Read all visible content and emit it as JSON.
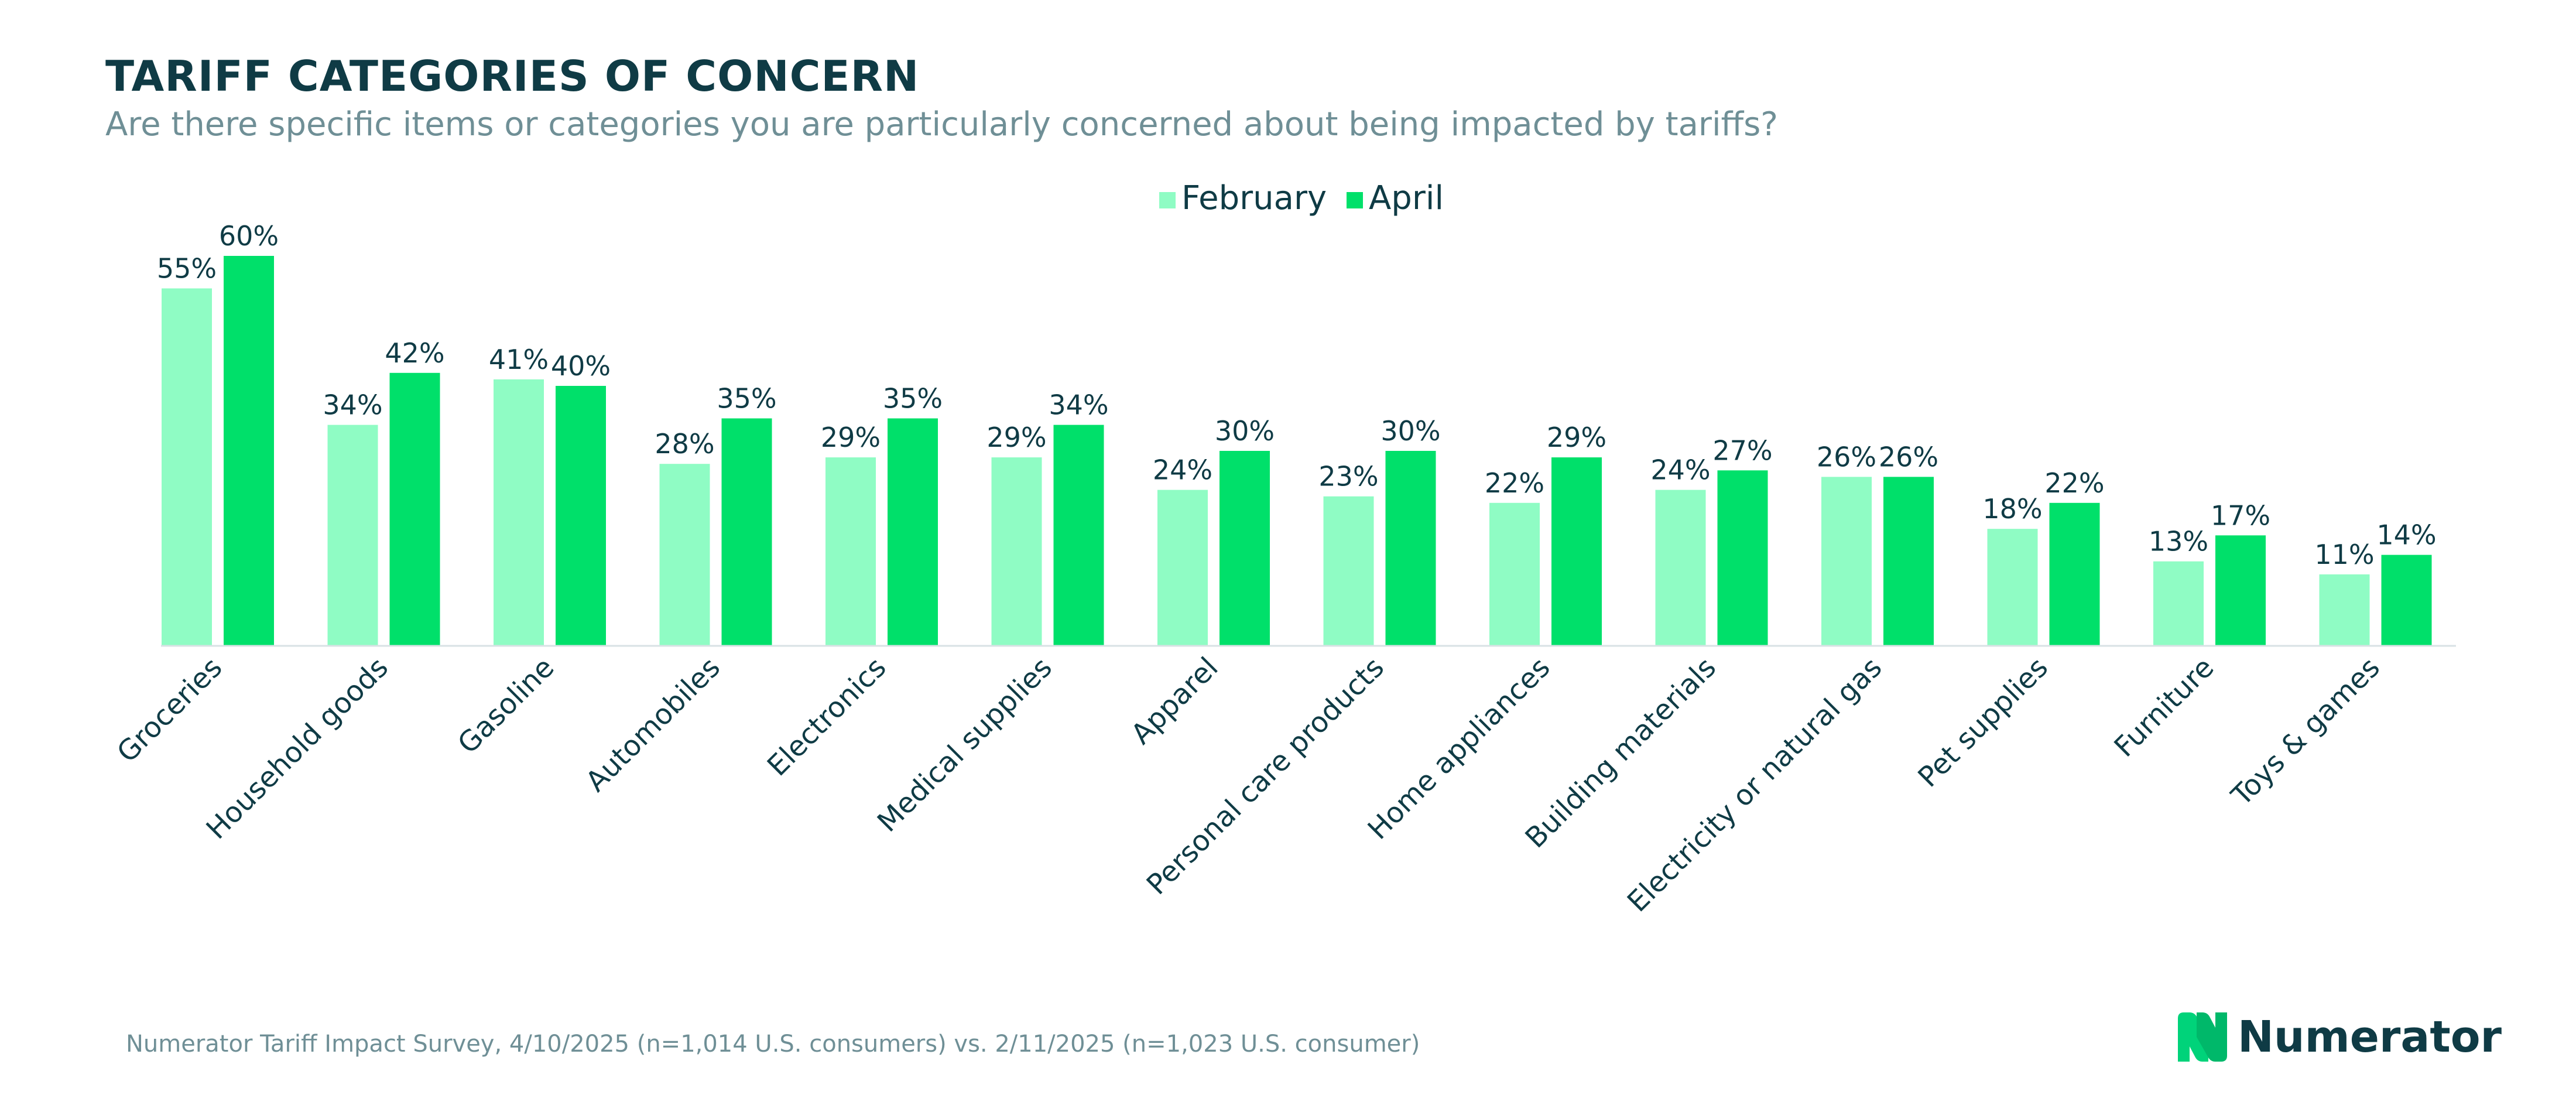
{
  "title": "TARIFF CATEGORIES OF CONCERN",
  "subtitle": "Are there specific items or categories you are particularly concerned about being impacted by tariffs?",
  "source": "Numerator Tariff Impact Survey, 4/10/2025 (n=1,014 U.S. consumers) vs. 2/11/2025 (n=1,023 U.S. consumer)",
  "logo": {
    "text": "Numerator",
    "icon": "numerator-n-logo-icon"
  },
  "colors": {
    "february": "#8ffcc4",
    "april": "#00e06a",
    "text": "#0f3b45",
    "muted": "#6f8f96"
  },
  "chart_data": {
    "type": "bar",
    "title": "TARIFF CATEGORIES OF CONCERN",
    "categories": [
      "Groceries",
      "Household goods",
      "Gasoline",
      "Automobiles",
      "Electronics",
      "Medical supplies",
      "Apparel",
      "Personal care products",
      "Home appliances",
      "Building materials",
      "Electricity or natural gas",
      "Pet supplies",
      "Furniture",
      "Toys & games"
    ],
    "series": [
      {
        "name": "February",
        "values": [
          55,
          34,
          41,
          28,
          29,
          29,
          24,
          23,
          22,
          24,
          26,
          18,
          13,
          11
        ]
      },
      {
        "name": "April",
        "values": [
          60,
          42,
          40,
          35,
          35,
          34,
          30,
          30,
          29,
          27,
          26,
          22,
          17,
          14
        ]
      }
    ],
    "value_suffix": "%",
    "ylim": [
      0,
      60
    ],
    "grid": false,
    "legend_position": "top-center",
    "xlabel": "",
    "ylabel": ""
  }
}
